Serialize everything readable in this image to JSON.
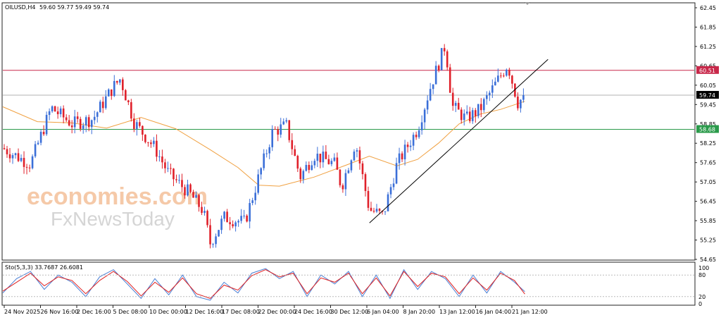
{
  "header": {
    "symbol": "OILUSD,H4",
    "ohlc": "59.60 59.77 59.49 59.74"
  },
  "watermark": {
    "line1": "economies.com",
    "line2": "FxNewsToday"
  },
  "colors": {
    "bull": "#3b6fd8",
    "bear": "#e0202a",
    "ma": "#f0a040",
    "resistance": "#c8284a",
    "support": "#2a9a4a",
    "last": "#b0b0b0",
    "trend": "#000000",
    "stoch_main": "#4a7fd4",
    "stoch_signal": "#e02020"
  },
  "chart_data": [
    {
      "type": "candlestick",
      "title": "OILUSD,H4",
      "ylim": [
        54.65,
        62.45
      ],
      "y_ticks": [
        "62.45",
        "61.85",
        "61.25",
        "60.65",
        "60.05",
        "59.45",
        "58.85",
        "58.25",
        "57.65",
        "57.05",
        "56.45",
        "55.85",
        "55.25",
        "54.65"
      ],
      "x_ticks": [
        "24 Nov 2025",
        "26 Nov 16:00",
        "2 Dec 16:00",
        "5 Dec 08:00",
        "10 Dec 00:00",
        "12 Dec 16:00",
        "17 Dec 08:00",
        "22 Dec 00:00",
        "24 Dec 16:00",
        "30 Dec 12:00",
        "6 Jan 04:00",
        "8 Jan 20:00",
        "13 Jan 12:00",
        "16 Jan 04:00",
        "21 Jan 12:00"
      ],
      "levels": [
        {
          "label": "60.51",
          "value": 60.51,
          "role": "resistance"
        },
        {
          "label": "59.74",
          "value": 59.74,
          "role": "last"
        },
        {
          "label": "58.68",
          "value": 58.68,
          "role": "support"
        }
      ],
      "trendline": {
        "from": {
          "x": 0.5303,
          "y": 55.78
        },
        "to": {
          "x": 0.7885,
          "y": 60.85
        }
      },
      "close_path": [
        [
          0.0,
          58.1
        ],
        [
          0.04,
          57.6
        ],
        [
          0.07,
          59.35
        ],
        [
          0.1,
          58.85
        ],
        [
          0.13,
          59.0
        ],
        [
          0.16,
          60.0
        ],
        [
          0.17,
          60.25
        ],
        [
          0.19,
          58.9
        ],
        [
          0.22,
          58.1
        ],
        [
          0.24,
          57.3
        ],
        [
          0.27,
          56.7
        ],
        [
          0.29,
          56.15
        ],
        [
          0.3,
          55.15
        ],
        [
          0.32,
          55.95
        ],
        [
          0.35,
          55.8
        ],
        [
          0.37,
          57.2
        ],
        [
          0.39,
          58.6
        ],
        [
          0.41,
          58.8
        ],
        [
          0.43,
          57.2
        ],
        [
          0.45,
          57.9
        ],
        [
          0.48,
          57.6
        ],
        [
          0.49,
          56.9
        ],
        [
          0.51,
          58.3
        ],
        [
          0.53,
          56.2
        ],
        [
          0.55,
          56.0
        ],
        [
          0.57,
          57.6
        ],
        [
          0.6,
          58.7
        ],
        [
          0.62,
          60.1
        ],
        [
          0.64,
          61.3
        ],
        [
          0.65,
          59.4
        ],
        [
          0.67,
          59.0
        ],
        [
          0.69,
          59.3
        ],
        [
          0.71,
          60.0
        ],
        [
          0.73,
          60.7
        ],
        [
          0.745,
          59.5
        ],
        [
          0.755,
          59.74
        ]
      ],
      "ma_path": [
        [
          0.0,
          59.38
        ],
        [
          0.05,
          58.92
        ],
        [
          0.1,
          58.88
        ],
        [
          0.15,
          58.72
        ],
        [
          0.2,
          59.05
        ],
        [
          0.25,
          58.7
        ],
        [
          0.3,
          58.05
        ],
        [
          0.34,
          57.5
        ],
        [
          0.37,
          56.95
        ],
        [
          0.4,
          56.92
        ],
        [
          0.45,
          57.2
        ],
        [
          0.5,
          57.6
        ],
        [
          0.53,
          57.85
        ],
        [
          0.57,
          57.55
        ],
        [
          0.6,
          57.75
        ],
        [
          0.63,
          58.25
        ],
        [
          0.66,
          58.85
        ],
        [
          0.69,
          59.15
        ],
        [
          0.72,
          59.3
        ],
        [
          0.755,
          59.55
        ]
      ]
    },
    {
      "type": "line",
      "title": "Sto(5,3,3) 33.7687 26.6081",
      "ylim": [
        0,
        100
      ],
      "y_ticks": [
        "100",
        "80",
        "20",
        "0"
      ],
      "series": [
        {
          "name": "Sto main",
          "points": [
            [
              0.0,
              30
            ],
            [
              0.02,
              70
            ],
            [
              0.04,
              90
            ],
            [
              0.06,
              40
            ],
            [
              0.08,
              80
            ],
            [
              0.1,
              60
            ],
            [
              0.12,
              20
            ],
            [
              0.14,
              75
            ],
            [
              0.16,
              95
            ],
            [
              0.18,
              55
            ],
            [
              0.2,
              15
            ],
            [
              0.22,
              70
            ],
            [
              0.24,
              25
            ],
            [
              0.26,
              80
            ],
            [
              0.28,
              20
            ],
            [
              0.3,
              10
            ],
            [
              0.32,
              60
            ],
            [
              0.34,
              30
            ],
            [
              0.36,
              85
            ],
            [
              0.38,
              98
            ],
            [
              0.4,
              70
            ],
            [
              0.42,
              90
            ],
            [
              0.44,
              20
            ],
            [
              0.46,
              80
            ],
            [
              0.48,
              55
            ],
            [
              0.5,
              90
            ],
            [
              0.52,
              20
            ],
            [
              0.54,
              80
            ],
            [
              0.56,
              15
            ],
            [
              0.58,
              95
            ],
            [
              0.6,
              40
            ],
            [
              0.62,
              90
            ],
            [
              0.64,
              70
            ],
            [
              0.66,
              20
            ],
            [
              0.68,
              80
            ],
            [
              0.7,
              30
            ],
            [
              0.72,
              90
            ],
            [
              0.74,
              60
            ],
            [
              0.755,
              34
            ]
          ]
        },
        {
          "name": "Sto signal",
          "points": [
            [
              0.0,
              35
            ],
            [
              0.02,
              60
            ],
            [
              0.04,
              85
            ],
            [
              0.06,
              50
            ],
            [
              0.08,
              75
            ],
            [
              0.1,
              65
            ],
            [
              0.12,
              28
            ],
            [
              0.14,
              65
            ],
            [
              0.16,
              90
            ],
            [
              0.18,
              62
            ],
            [
              0.2,
              22
            ],
            [
              0.22,
              60
            ],
            [
              0.24,
              32
            ],
            [
              0.26,
              72
            ],
            [
              0.28,
              28
            ],
            [
              0.3,
              15
            ],
            [
              0.32,
              52
            ],
            [
              0.34,
              38
            ],
            [
              0.36,
              78
            ],
            [
              0.38,
              95
            ],
            [
              0.4,
              75
            ],
            [
              0.42,
              85
            ],
            [
              0.44,
              28
            ],
            [
              0.46,
              72
            ],
            [
              0.48,
              60
            ],
            [
              0.5,
              85
            ],
            [
              0.52,
              28
            ],
            [
              0.54,
              72
            ],
            [
              0.56,
              22
            ],
            [
              0.58,
              90
            ],
            [
              0.6,
              48
            ],
            [
              0.62,
              85
            ],
            [
              0.64,
              75
            ],
            [
              0.66,
              28
            ],
            [
              0.68,
              72
            ],
            [
              0.7,
              38
            ],
            [
              0.72,
              85
            ],
            [
              0.74,
              65
            ],
            [
              0.755,
              27
            ]
          ]
        }
      ]
    }
  ]
}
